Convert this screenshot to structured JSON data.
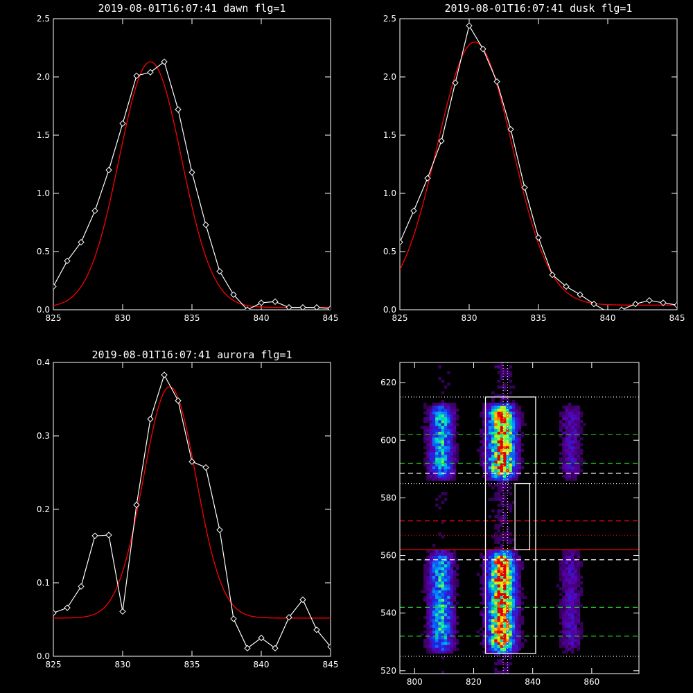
{
  "chart_data": [
    {
      "type": "line",
      "title": "2019-08-01T16:07:41 dawn flg=1",
      "xlim": [
        825,
        845
      ],
      "ylim": [
        0,
        2.5
      ],
      "xticks": [
        "825",
        "830",
        "835",
        "840",
        "845"
      ],
      "yticks": [
        "0.0",
        "0.5",
        "1.0",
        "1.5",
        "2.0",
        "2.5"
      ],
      "series": [
        {
          "color": "#ffffff",
          "markers": "diamond",
          "x": [
            825,
            826,
            827,
            828,
            829,
            830,
            831,
            832,
            833,
            834,
            835,
            836,
            837,
            838,
            839,
            840,
            841,
            842,
            843,
            844,
            845
          ],
          "y": [
            0.2,
            0.42,
            0.58,
            0.85,
            1.2,
            1.6,
            2.01,
            2.04,
            2.13,
            1.72,
            1.18,
            0.73,
            0.33,
            0.13,
            0.0,
            0.06,
            0.07,
            0.02,
            0.02,
            0.02,
            0.01
          ]
        },
        {
          "color": "#ff0000",
          "fit": "gaussian",
          "amplitude": 2.11,
          "center": 832.0,
          "sigma": 2.25,
          "offset": 0.02
        }
      ]
    },
    {
      "type": "line",
      "title": "2019-08-01T16:07:41 dusk flg=1",
      "xlim": [
        825,
        845
      ],
      "ylim": [
        0,
        2.5
      ],
      "xticks": [
        "825",
        "830",
        "835",
        "840",
        "845"
      ],
      "yticks": [
        "0.0",
        "0.5",
        "1.0",
        "1.5",
        "2.0",
        "2.5"
      ],
      "series": [
        {
          "color": "#ffffff",
          "markers": "diamond",
          "x": [
            825,
            826,
            827,
            828,
            829,
            830,
            831,
            832,
            833,
            834,
            835,
            836,
            837,
            838,
            839,
            840,
            841,
            842,
            843,
            844,
            845
          ],
          "y": [
            0.58,
            0.85,
            1.13,
            1.45,
            1.95,
            2.44,
            2.24,
            1.96,
            1.55,
            1.05,
            0.62,
            0.3,
            0.2,
            0.13,
            0.05,
            -0.02,
            0.0,
            0.05,
            0.08,
            0.06,
            0.04
          ]
        },
        {
          "color": "#ff0000",
          "fit": "gaussian",
          "amplitude": 2.26,
          "center": 830.4,
          "sigma": 2.7,
          "offset": 0.04
        }
      ]
    },
    {
      "type": "line",
      "title": "2019-08-01T16:07:41 aurora flg=1",
      "xlim": [
        825,
        845
      ],
      "ylim": [
        0,
        0.4
      ],
      "xticks": [
        "825",
        "830",
        "835",
        "840",
        "845"
      ],
      "yticks": [
        "0.0",
        "0.1",
        "0.2",
        "0.3",
        "0.4"
      ],
      "series": [
        {
          "color": "#ffffff",
          "markers": "diamond",
          "x": [
            825,
            826,
            827,
            828,
            829,
            830,
            831,
            832,
            833,
            834,
            835,
            836,
            837,
            838,
            839,
            840,
            841,
            842,
            843,
            844,
            845
          ],
          "y": [
            0.059,
            0.066,
            0.095,
            0.164,
            0.165,
            0.061,
            0.206,
            0.323,
            0.383,
            0.348,
            0.265,
            0.257,
            0.172,
            0.051,
            0.011,
            0.025,
            0.011,
            0.053,
            0.077,
            0.036,
            0.013
          ]
        },
        {
          "color": "#ff0000",
          "fit": "gaussian",
          "amplitude": 0.315,
          "center": 833.4,
          "sigma": 1.9,
          "offset": 0.052
        }
      ]
    },
    {
      "type": "heatmap",
      "xlim": [
        795,
        876
      ],
      "ylim": [
        519,
        627
      ],
      "xticks": [
        "800",
        "820",
        "840",
        "860"
      ],
      "yticks": [
        "520",
        "540",
        "560",
        "580",
        "600",
        "620"
      ],
      "bands": [
        {
          "center": 809,
          "halfwidth": 4,
          "peak": 0.55
        },
        {
          "center": 829.5,
          "halfwidth": 4.5,
          "peak": 1.0
        },
        {
          "center": 853,
          "halfwidth": 3.5,
          "peak": 0.2
        }
      ],
      "emission_rows": [
        {
          "y_from": 526,
          "y_to": 562
        },
        {
          "y_from": 586,
          "y_to": 613
        }
      ],
      "boxes": [
        {
          "x": [
            824,
            841
          ],
          "y": [
            526,
            615
          ]
        },
        {
          "x": [
            834,
            839
          ],
          "y": [
            562,
            585
          ]
        }
      ],
      "hlines": [
        {
          "y": 615,
          "color": "#ffffff",
          "style": "dotted"
        },
        {
          "y": 602,
          "color": "#22cc22",
          "style": "dashed"
        },
        {
          "y": 592,
          "color": "#22cc22",
          "style": "dashed"
        },
        {
          "y": 588.5,
          "color": "#ffffff",
          "style": "dashed"
        },
        {
          "y": 585,
          "color": "#ffffff",
          "style": "dotted"
        },
        {
          "y": 572,
          "color": "#ff0000",
          "style": "dashed"
        },
        {
          "y": 567,
          "color": "#ff0000",
          "style": "dotted"
        },
        {
          "y": 562,
          "color": "#ff0000",
          "style": "solid"
        },
        {
          "y": 558.5,
          "color": "#ffffff",
          "style": "dashed"
        },
        {
          "y": 542,
          "color": "#22cc22",
          "style": "dashed"
        },
        {
          "y": 532,
          "color": "#22cc22",
          "style": "dashed"
        },
        {
          "y": 525,
          "color": "#ffffff",
          "style": "dotted"
        }
      ],
      "vlines": [
        {
          "x": 830,
          "color": "#ffffff",
          "style": "dotted"
        },
        {
          "x": 831.5,
          "color": "#ffffff",
          "style": "dotted"
        }
      ]
    }
  ]
}
